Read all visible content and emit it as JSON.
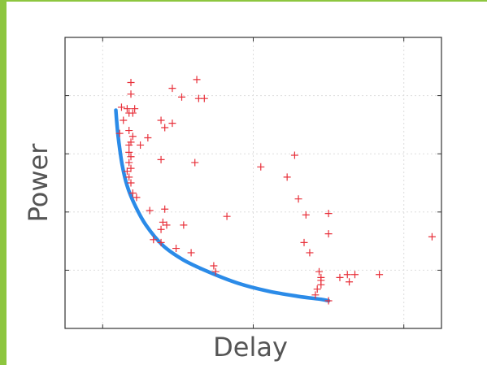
{
  "chart_data": {
    "type": "scatter",
    "xlabel": "Delay",
    "ylabel": "Power",
    "xlim": [
      0,
      10
    ],
    "ylim": [
      0,
      10
    ],
    "grid": true,
    "x_ticks": [
      1,
      5,
      9
    ],
    "y_ticks": [
      2,
      4,
      6,
      8
    ],
    "show_tick_labels": false,
    "colors": {
      "points": "#e8303a",
      "frontier": "#2b8be8",
      "frame": "#333333",
      "grid": "#dddddd"
    },
    "series": [
      {
        "kind": "points",
        "marker": "plus",
        "values": [
          [
            1.75,
            8.45
          ],
          [
            1.75,
            8.05
          ],
          [
            1.65,
            7.55
          ],
          [
            1.85,
            7.55
          ],
          [
            1.7,
            7.4
          ],
          [
            1.8,
            7.4
          ],
          [
            1.5,
            7.6
          ],
          [
            1.55,
            7.15
          ],
          [
            1.45,
            6.7
          ],
          [
            1.7,
            6.8
          ],
          [
            1.8,
            6.6
          ],
          [
            2.2,
            6.55
          ],
          [
            1.75,
            6.4
          ],
          [
            1.7,
            6.3
          ],
          [
            2.0,
            6.3
          ],
          [
            1.7,
            6.05
          ],
          [
            1.75,
            5.9
          ],
          [
            1.7,
            5.7
          ],
          [
            1.75,
            5.5
          ],
          [
            1.65,
            5.4
          ],
          [
            1.7,
            5.2
          ],
          [
            1.75,
            5.0
          ],
          [
            1.8,
            4.65
          ],
          [
            1.9,
            4.5
          ],
          [
            2.25,
            4.05
          ],
          [
            2.65,
            4.1
          ],
          [
            2.6,
            3.65
          ],
          [
            2.7,
            3.55
          ],
          [
            2.55,
            3.4
          ],
          [
            3.15,
            3.55
          ],
          [
            2.35,
            3.05
          ],
          [
            2.55,
            2.95
          ],
          [
            2.95,
            2.75
          ],
          [
            3.35,
            2.6
          ],
          [
            3.95,
            2.15
          ],
          [
            4.0,
            1.95
          ],
          [
            2.85,
            8.25
          ],
          [
            3.1,
            7.95
          ],
          [
            3.5,
            8.55
          ],
          [
            3.55,
            7.9
          ],
          [
            3.7,
            7.9
          ],
          [
            2.55,
            7.15
          ],
          [
            2.65,
            6.9
          ],
          [
            2.85,
            7.05
          ],
          [
            2.55,
            5.8
          ],
          [
            3.45,
            5.7
          ],
          [
            4.3,
            3.85
          ],
          [
            5.2,
            5.55
          ],
          [
            5.9,
            5.2
          ],
          [
            6.1,
            5.95
          ],
          [
            6.2,
            4.45
          ],
          [
            6.4,
            3.9
          ],
          [
            6.35,
            2.95
          ],
          [
            6.5,
            2.6
          ],
          [
            6.75,
            1.95
          ],
          [
            6.8,
            1.65
          ],
          [
            6.7,
            1.35
          ],
          [
            6.65,
            1.15
          ],
          [
            6.8,
            1.5
          ],
          [
            6.8,
            1.75
          ],
          [
            7.0,
            3.95
          ],
          [
            7.0,
            3.25
          ],
          [
            7.0,
            0.95
          ],
          [
            7.3,
            1.75
          ],
          [
            7.5,
            1.85
          ],
          [
            7.55,
            1.6
          ],
          [
            7.7,
            1.85
          ],
          [
            8.35,
            1.85
          ],
          [
            9.75,
            3.15
          ]
        ]
      },
      {
        "kind": "curve",
        "values": [
          [
            1.35,
            7.5
          ],
          [
            1.38,
            7.0
          ],
          [
            1.43,
            6.4
          ],
          [
            1.52,
            5.6
          ],
          [
            1.65,
            4.9
          ],
          [
            1.85,
            4.25
          ],
          [
            2.15,
            3.55
          ],
          [
            2.6,
            2.85
          ],
          [
            3.15,
            2.35
          ],
          [
            3.8,
            1.95
          ],
          [
            4.6,
            1.55
          ],
          [
            5.4,
            1.28
          ],
          [
            6.2,
            1.1
          ],
          [
            6.8,
            1.0
          ],
          [
            7.0,
            0.95
          ]
        ]
      }
    ]
  }
}
